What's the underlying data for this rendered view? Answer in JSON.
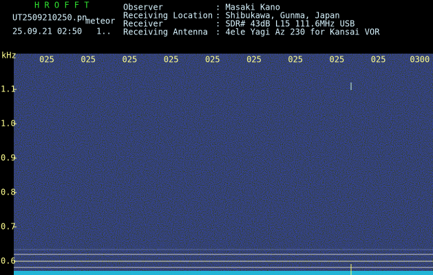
{
  "header": {
    "app": "H R O F F T",
    "file": "UT2509210250.pn",
    "mode": "meteor",
    "datetime": "25.09.21 02:50",
    "counter": "1..",
    "fields": [
      {
        "label": "Observer",
        "value": ": Masaki Kano"
      },
      {
        "label": "Receiving Location",
        "value": ": Shibukawa, Gunma, Japan"
      },
      {
        "label": "Receiver",
        "value": ": SDR# 43dB L15 111.6MHz USB"
      },
      {
        "label": "Receiving Antenna",
        "value": ": 4ele Yagi Az 230 for Kansai VOR"
      }
    ]
  },
  "chart_data": {
    "type": "spectrogram",
    "y_label": "kHz",
    "categories": [
      "025",
      "025",
      "025",
      "025",
      "025",
      "025",
      "025",
      "025",
      "025",
      "0300"
    ],
    "ylim": [
      0.56,
      1.204
    ],
    "yticks": [
      1.1,
      {
        "value": 1.0,
        "label": "1.0"
      },
      0.9,
      0.8,
      0.7,
      0.6
    ]
  }
}
